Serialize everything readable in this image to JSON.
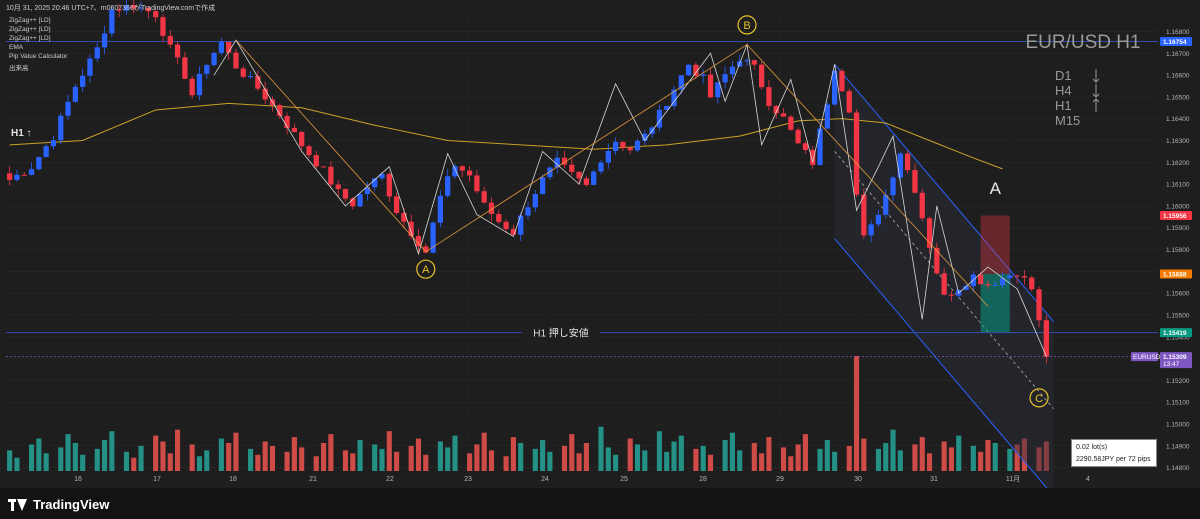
{
  "header": "10月 31, 2025 20:46 UTC+7、m0607366がTradingView.comで作成",
  "indicators": [
    "ZigZag++ [LD]",
    "ZigZag++ [LD]",
    "ZigZag++ [LD]",
    "EMA",
    "Pip Value Calculator",
    "出来高"
  ],
  "symbol_title": "EUR/USD H1",
  "timeframes": [
    {
      "tf": "D1",
      "dir": "down"
    },
    {
      "tf": "H4",
      "dir": "down"
    },
    {
      "tf": "H1",
      "dir": "up"
    },
    {
      "tf": "M15",
      "dir": ""
    }
  ],
  "h1_arrow_label": "H1 ↑",
  "wave_labels": {
    "a": "A",
    "b": "B",
    "c": "C",
    "big_a": "A"
  },
  "support_label": "H1 押し安値",
  "pip_calc": {
    "line1": "0.02 lot(s)",
    "line2": "2290.58JPY per 72 pips"
  },
  "branding": "TradingView",
  "colors": {
    "up": "#2962ff",
    "down": "#f23645",
    "ema": "#c9a227",
    "zigzag": "#d8d8d8",
    "zigzag2": "#f0a040",
    "hline": "#2f4fb0",
    "channel": "#2962ff",
    "vol_up": "#26a69a",
    "vol_down": "#ef5350"
  },
  "chart_data": {
    "type": "candlestick",
    "x_ticks": [
      "16",
      "17",
      "18",
      "21",
      "22",
      "23",
      "24",
      "25",
      "28",
      "29",
      "30",
      "31",
      "11月",
      "4"
    ],
    "y_ticks": [
      "1.16800",
      "1.16700",
      "1.16600",
      "1.16500",
      "1.16400",
      "1.16300",
      "1.16200",
      "1.16100",
      "1.16000",
      "1.15900",
      "1.15800",
      "1.15700",
      "1.15600",
      "1.15500",
      "1.15400",
      "1.15300",
      "1.15200",
      "1.15100",
      "1.15000",
      "1.14900",
      "1.14800"
    ],
    "y_range": [
      1.1478,
      1.1688
    ],
    "price_tags": [
      {
        "price": 1.16754,
        "text": "1.16754",
        "color": "#2962ff"
      },
      {
        "price": 1.15956,
        "text": "1.15956",
        "color": "#f23645"
      },
      {
        "price": 1.15688,
        "text": "1.15688",
        "color": "#f57c00"
      },
      {
        "price": 1.15419,
        "text": "1.15419",
        "color": "#089981"
      },
      {
        "price": 1.15309,
        "text": "1.15309",
        "sub": "13:47",
        "color": "#7e57c2",
        "symbol": "EURUSD"
      }
    ],
    "resistance_level": 1.16754,
    "support_level": 1.15419,
    "current_price": 1.15309,
    "waypoints": [
      [
        0,
        1.1612
      ],
      [
        3,
        1.1618
      ],
      [
        6,
        1.1632
      ],
      [
        9,
        1.1655
      ],
      [
        12,
        1.1672
      ],
      [
        14,
        1.169
      ],
      [
        17,
        1.1692
      ],
      [
        20,
        1.1688
      ],
      [
        22,
        1.1672
      ],
      [
        24,
        1.166
      ],
      [
        25,
        1.1651
      ],
      [
        27,
        1.1666
      ],
      [
        29,
        1.1675
      ],
      [
        31,
        1.1664
      ],
      [
        34,
        1.1654
      ],
      [
        37,
        1.1642
      ],
      [
        40,
        1.1628
      ],
      [
        43,
        1.1616
      ],
      [
        45,
        1.1606
      ],
      [
        47,
        1.1601
      ],
      [
        49,
        1.1609
      ],
      [
        51,
        1.1614
      ],
      [
        53,
        1.1598
      ],
      [
        55,
        1.1588
      ],
      [
        57,
        1.1579
      ],
      [
        59,
        1.1604
      ],
      [
        61,
        1.1619
      ],
      [
        63,
        1.1614
      ],
      [
        65,
        1.16
      ],
      [
        67,
        1.1593
      ],
      [
        69,
        1.1588
      ],
      [
        71,
        1.1601
      ],
      [
        73,
        1.1612
      ],
      [
        75,
        1.162
      ],
      [
        77,
        1.1614
      ],
      [
        79,
        1.1609
      ],
      [
        81,
        1.1622
      ],
      [
        83,
        1.163
      ],
      [
        85,
        1.1626
      ],
      [
        87,
        1.1632
      ],
      [
        89,
        1.1642
      ],
      [
        91,
        1.1654
      ],
      [
        93,
        1.1665
      ],
      [
        95,
        1.1658
      ],
      [
        96,
        1.165
      ],
      [
        98,
        1.166
      ],
      [
        100,
        1.1668
      ],
      [
        102,
        1.1663
      ],
      [
        104,
        1.1648
      ],
      [
        106,
        1.164
      ],
      [
        108,
        1.1628
      ],
      [
        110,
        1.162
      ],
      [
        112,
        1.1648
      ],
      [
        113,
        1.1664
      ],
      [
        115,
        1.1645
      ],
      [
        116,
        1.1605
      ],
      [
        117,
        1.1585
      ],
      [
        118,
        1.159
      ],
      [
        120,
        1.1605
      ],
      [
        122,
        1.1625
      ],
      [
        124,
        1.1608
      ],
      [
        126,
        1.1582
      ],
      [
        128,
        1.1558
      ],
      [
        130,
        1.1563
      ],
      [
        132,
        1.1568
      ],
      [
        134,
        1.1564
      ],
      [
        136,
        1.1567
      ],
      [
        138,
        1.157
      ],
      [
        140,
        1.1562
      ],
      [
        142,
        1.1531
      ]
    ],
    "ema_points": [
      [
        0,
        1.1628
      ],
      [
        10,
        1.163
      ],
      [
        20,
        1.1644
      ],
      [
        30,
        1.1647
      ],
      [
        40,
        1.1645
      ],
      [
        50,
        1.1637
      ],
      [
        60,
        1.163
      ],
      [
        70,
        1.1628
      ],
      [
        80,
        1.1626
      ],
      [
        90,
        1.1628
      ],
      [
        100,
        1.1632
      ],
      [
        108,
        1.1639
      ],
      [
        114,
        1.164
      ],
      [
        120,
        1.1638
      ],
      [
        126,
        1.163
      ],
      [
        132,
        1.1622
      ],
      [
        136,
        1.1617
      ]
    ],
    "zigzag_minor": [
      [
        28,
        1.166
      ],
      [
        31,
        1.1676
      ],
      [
        40,
        1.1625
      ],
      [
        46,
        1.16
      ],
      [
        52,
        1.1618
      ],
      [
        56,
        1.1578
      ],
      [
        60,
        1.1624
      ],
      [
        64,
        1.1596
      ],
      [
        69,
        1.1586
      ],
      [
        73,
        1.1625
      ],
      [
        78,
        1.161
      ],
      [
        83,
        1.1656
      ],
      [
        87,
        1.163
      ],
      [
        96,
        1.167
      ],
      [
        98,
        1.1648
      ],
      [
        101,
        1.1674
      ],
      [
        103,
        1.1628
      ],
      [
        107,
        1.1658
      ],
      [
        110,
        1.162
      ],
      [
        113,
        1.1665
      ],
      [
        116,
        1.1598
      ],
      [
        119,
        1.1618
      ],
      [
        121,
        1.1632
      ],
      [
        125,
        1.1548
      ],
      [
        127,
        1.16
      ],
      [
        130,
        1.156
      ],
      [
        134,
        1.1572
      ],
      [
        138,
        1.1562
      ],
      [
        142,
        1.1531
      ]
    ],
    "zigzag_major": [
      [
        31,
        1.1676
      ],
      [
        57,
        1.1579
      ],
      [
        101,
        1.1674
      ],
      [
        134,
        1.1554
      ]
    ],
    "channel_lines": [
      {
        "from": [
          113,
          1.1665
        ],
        "to": [
          143,
          1.1547
        ]
      },
      {
        "from": [
          113,
          1.1585
        ],
        "to": [
          143,
          1.1467
        ]
      }
    ],
    "wave_label_positions": {
      "a": [
        57,
        1.1571
      ],
      "b": [
        101,
        1.1683
      ],
      "c": [
        141,
        1.1512
      ]
    },
    "position_box": {
      "x_from": 133,
      "x_to": 137,
      "stop": 1.15956,
      "entry": 1.15688,
      "target": 1.15419
    },
    "volume": [
      14,
      9,
      18,
      22,
      12,
      16,
      25,
      19,
      11,
      15,
      21,
      27,
      13,
      9,
      17,
      24,
      20,
      12,
      28,
      18,
      10,
      14,
      22,
      19,
      26,
      15,
      11,
      20,
      17,
      13,
      23,
      16,
      10,
      19,
      25,
      14,
      12,
      21,
      18,
      15,
      27,
      13,
      17,
      22,
      11,
      20,
      16,
      24,
      12,
      18,
      26,
      14,
      10,
      23,
      19,
      15,
      21,
      13,
      17,
      25,
      12,
      19,
      30,
      16,
      11,
      22,
      18,
      14,
      27,
      13,
      20,
      24,
      15,
      17,
      11,
      21,
      26,
      14,
      19,
      12,
      23,
      16,
      10,
      18,
      25,
      15,
      21,
      13,
      17,
      78,
      22,
      15,
      19,
      28,
      14,
      18,
      23,
      12,
      20,
      16,
      24,
      17,
      13,
      21,
      19,
      15,
      18,
      22,
      16,
      20
    ],
    "volume_spike_index": 89
  }
}
